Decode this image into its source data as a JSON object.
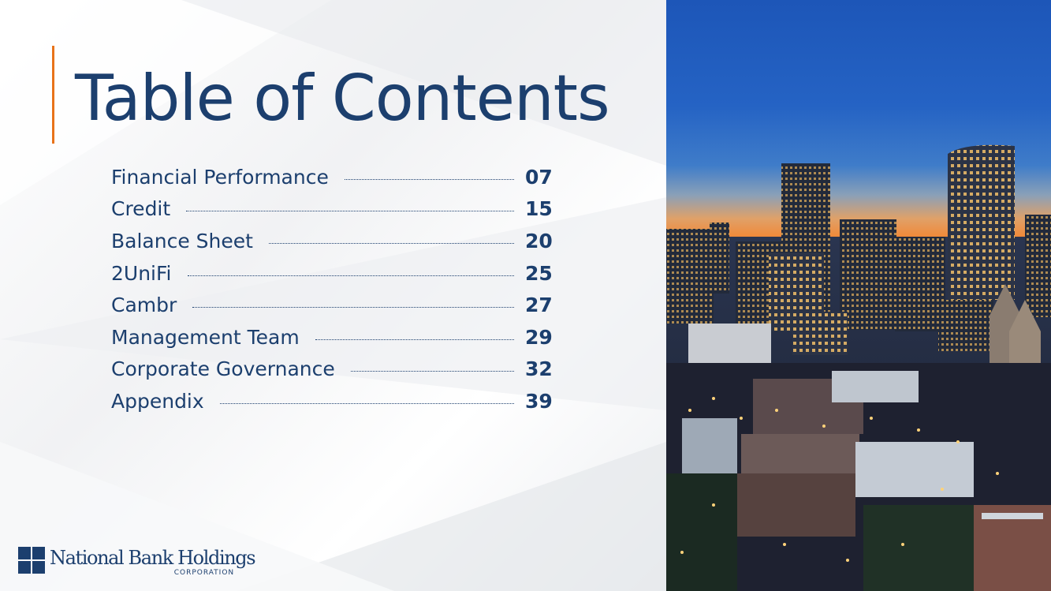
{
  "title": "Table of Contents",
  "toc": [
    {
      "label": "Financial Performance",
      "page": "07"
    },
    {
      "label": "Credit",
      "page": "15"
    },
    {
      "label": "Balance Sheet",
      "page": "20"
    },
    {
      "label": "2UniFi",
      "page": "25"
    },
    {
      "label": "Cambr",
      "page": "27"
    },
    {
      "label": "Management Team",
      "page": "29"
    },
    {
      "label": "Corporate Governance",
      "page": "32"
    },
    {
      "label": "Appendix",
      "page": "39"
    }
  ],
  "logo": {
    "name": "National Bank Holdings",
    "sub": "CORPORATION"
  },
  "colors": {
    "primary": "#1c3f6e",
    "accent": "#e8731a"
  },
  "photo": {
    "subject": "city-skyline-at-dusk-image"
  }
}
